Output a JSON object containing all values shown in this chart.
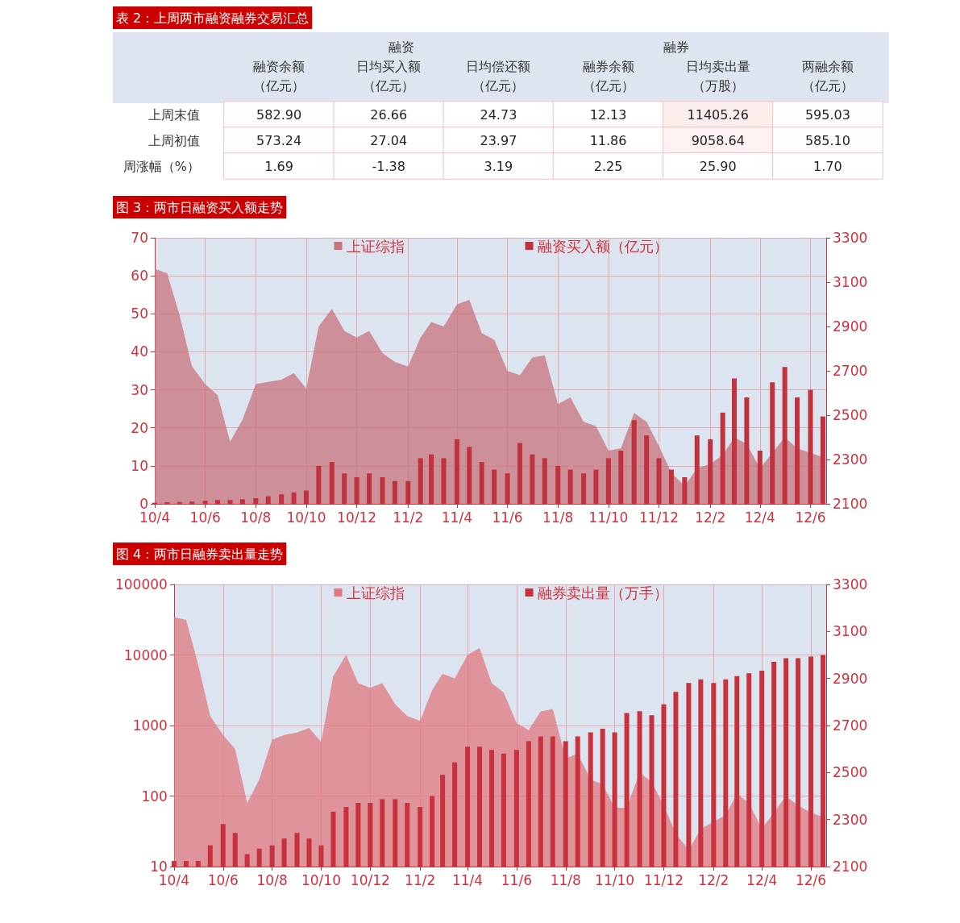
{
  "chart_data": [
    {
      "type": "heatmap",
      "title": "表 2：上周两市融资融券交易汇总",
      "annotations": [
        "融资",
        "融券"
      ],
      "categories": [
        "融资余额（亿元）",
        "日均买入额（亿元）",
        "日均偿还额（亿元）",
        "融券余额（亿元）",
        "日均卖出量（万股）",
        "两融余额（亿元）"
      ],
      "y_categories": [
        "上周末值",
        "上周初值",
        "周涨幅（%）"
      ],
      "cells": [
        [
          582.9,
          26.66,
          24.73,
          12.13,
          11405.26,
          595.03
        ],
        [
          573.24,
          27.04,
          23.97,
          11.86,
          9058.64,
          585.1
        ],
        [
          1.69,
          -1.38,
          3.19,
          2.25,
          25.9,
          1.7
        ]
      ],
      "cell_labels": [
        [
          "582.90",
          "26.66",
          "24.73",
          "12.13",
          "11405.26",
          "595.03"
        ],
        [
          "573.24",
          "27.04",
          "23.97",
          "11.86",
          "9058.64",
          "585.10"
        ],
        [
          "1.69",
          "-1.38",
          "3.19",
          "2.25",
          "25.90",
          "1.70"
        ]
      ]
    },
    {
      "type": "bar",
      "title": "图 3：两市日融资买入额走势",
      "legend": "top",
      "grid": true,
      "x": [
        "2010-04-01",
        "2010-04-16",
        "2010-05-01",
        "2010-05-16",
        "2010-06-01",
        "2010-06-16",
        "2010-07-01",
        "2010-07-16",
        "2010-08-01",
        "2010-08-16",
        "2010-09-01",
        "2010-09-16",
        "2010-10-01",
        "2010-10-16",
        "2010-11-01",
        "2010-11-16",
        "2010-12-01",
        "2010-12-16",
        "2011-01-01",
        "2011-01-16",
        "2011-02-01",
        "2011-02-16",
        "2011-03-01",
        "2011-03-16",
        "2011-04-01",
        "2011-04-16",
        "2011-05-01",
        "2011-05-16",
        "2011-06-01",
        "2011-06-16",
        "2011-07-01",
        "2011-07-16",
        "2011-08-01",
        "2011-08-16",
        "2011-09-01",
        "2011-09-16",
        "2011-10-01",
        "2011-10-16",
        "2011-11-01",
        "2011-11-16",
        "2011-12-01",
        "2011-12-16",
        "2012-01-01",
        "2012-01-16",
        "2012-02-01",
        "2012-02-16",
        "2012-03-01",
        "2012-03-16",
        "2012-04-01",
        "2012-04-16",
        "2012-05-01",
        "2012-05-16",
        "2012-06-01",
        "2012-06-16"
      ],
      "xlim": [
        "2010-04-01",
        "2012-06-20"
      ],
      "xticks": [
        {
          "value": "2010-04-01",
          "label": "10/4"
        },
        {
          "value": "2010-06-01",
          "label": "10/6"
        },
        {
          "value": "2010-08-01",
          "label": "10/8"
        },
        {
          "value": "2010-10-01",
          "label": "10/10"
        },
        {
          "value": "2010-12-01",
          "label": "10/12"
        },
        {
          "value": "2011-02-01",
          "label": "11/2"
        },
        {
          "value": "2011-04-01",
          "label": "11/4"
        },
        {
          "value": "2011-06-01",
          "label": "11/6"
        },
        {
          "value": "2011-08-01",
          "label": "11/8"
        },
        {
          "value": "2011-10-01",
          "label": "11/10"
        },
        {
          "value": "2011-12-01",
          "label": "11/12"
        },
        {
          "value": "2012-02-01",
          "label": "12/2"
        },
        {
          "value": "2012-04-01",
          "label": "12/4"
        },
        {
          "value": "2012-06-01",
          "label": "12/6"
        }
      ],
      "ylim": [
        0,
        70
      ],
      "yticks": [
        0,
        10,
        20,
        30,
        40,
        50,
        60,
        70
      ],
      "y2lim": [
        2100,
        3300
      ],
      "y2ticks": [
        2100,
        2300,
        2500,
        2700,
        2900,
        3100,
        3300
      ],
      "series": [
        {
          "name": "上证综指",
          "type": "area",
          "axis": "y2",
          "color": "#c8737b",
          "values": [
            3160,
            3140,
            2950,
            2720,
            2640,
            2590,
            2380,
            2480,
            2640,
            2650,
            2660,
            2690,
            2620,
            2900,
            2980,
            2880,
            2850,
            2880,
            2780,
            2740,
            2720,
            2850,
            2920,
            2900,
            3000,
            3020,
            2870,
            2840,
            2700,
            2680,
            2760,
            2770,
            2550,
            2580,
            2470,
            2450,
            2340,
            2350,
            2510,
            2470,
            2360,
            2240,
            2180,
            2260,
            2280,
            2320,
            2400,
            2370,
            2260,
            2330,
            2400,
            2350,
            2330,
            2310
          ]
        },
        {
          "name": "融资买入额（亿元）",
          "type": "bar",
          "color": "#c0323c",
          "values": [
            0.3,
            0.4,
            0.5,
            0.6,
            0.8,
            1,
            1,
            1.2,
            1.5,
            2,
            2.5,
            3,
            3.5,
            10,
            11,
            8,
            7,
            8,
            7,
            6,
            6,
            12,
            13,
            12,
            17,
            15,
            11,
            9,
            8,
            16,
            13,
            12,
            10,
            9,
            8,
            9,
            12,
            14,
            22,
            18,
            12,
            9,
            7,
            18,
            17,
            24,
            33,
            28,
            14,
            32,
            36,
            28,
            30,
            23
          ]
        }
      ]
    },
    {
      "type": "bar",
      "title": "图 4：两市日融券卖出量走势",
      "legend": "top",
      "grid": true,
      "log": "y",
      "x": [
        "2010-04-01",
        "2010-04-16",
        "2010-05-01",
        "2010-05-16",
        "2010-06-01",
        "2010-06-16",
        "2010-07-01",
        "2010-07-16",
        "2010-08-01",
        "2010-08-16",
        "2010-09-01",
        "2010-09-16",
        "2010-10-01",
        "2010-10-16",
        "2010-11-01",
        "2010-11-16",
        "2010-12-01",
        "2010-12-16",
        "2011-01-01",
        "2011-01-16",
        "2011-02-01",
        "2011-02-16",
        "2011-03-01",
        "2011-03-16",
        "2011-04-01",
        "2011-04-16",
        "2011-05-01",
        "2011-05-16",
        "2011-06-01",
        "2011-06-16",
        "2011-07-01",
        "2011-07-16",
        "2011-08-01",
        "2011-08-16",
        "2011-09-01",
        "2011-09-16",
        "2011-10-01",
        "2011-10-16",
        "2011-11-01",
        "2011-11-16",
        "2011-12-01",
        "2011-12-16",
        "2012-01-01",
        "2012-01-16",
        "2012-02-01",
        "2012-02-16",
        "2012-03-01",
        "2012-03-16",
        "2012-04-01",
        "2012-04-16",
        "2012-05-01",
        "2012-05-16",
        "2012-06-01",
        "2012-06-16"
      ],
      "xlim": [
        "2010-04-01",
        "2012-06-20"
      ],
      "xticks": [
        {
          "value": "2010-04-01",
          "label": "10/4"
        },
        {
          "value": "2010-06-01",
          "label": "10/6"
        },
        {
          "value": "2010-08-01",
          "label": "10/8"
        },
        {
          "value": "2010-10-01",
          "label": "10/10"
        },
        {
          "value": "2010-12-01",
          "label": "10/12"
        },
        {
          "value": "2011-02-01",
          "label": "11/2"
        },
        {
          "value": "2011-04-01",
          "label": "11/4"
        },
        {
          "value": "2011-06-01",
          "label": "11/6"
        },
        {
          "value": "2011-08-01",
          "label": "11/8"
        },
        {
          "value": "2011-10-01",
          "label": "11/10"
        },
        {
          "value": "2011-12-01",
          "label": "11/12"
        },
        {
          "value": "2012-02-01",
          "label": "12/2"
        },
        {
          "value": "2012-04-01",
          "label": "12/4"
        },
        {
          "value": "2012-06-01",
          "label": "12/6"
        }
      ],
      "ylim": [
        10,
        100000
      ],
      "yticks": [
        10,
        100,
        1000,
        10000,
        100000
      ],
      "y2lim": [
        2100,
        3300
      ],
      "y2ticks": [
        2100,
        2300,
        2500,
        2700,
        2900,
        3100,
        3300
      ],
      "series": [
        {
          "name": "上证综指",
          "type": "area",
          "axis": "y2",
          "color": "#e0787f",
          "values": [
            3160,
            3150,
            2960,
            2740,
            2660,
            2600,
            2370,
            2470,
            2640,
            2660,
            2670,
            2690,
            2630,
            2910,
            3000,
            2880,
            2860,
            2880,
            2790,
            2740,
            2720,
            2850,
            2920,
            2900,
            3000,
            3030,
            2880,
            2840,
            2710,
            2680,
            2760,
            2770,
            2560,
            2580,
            2470,
            2450,
            2350,
            2350,
            2500,
            2460,
            2360,
            2240,
            2170,
            2260,
            2290,
            2320,
            2410,
            2370,
            2260,
            2330,
            2400,
            2360,
            2330,
            2310
          ]
        },
        {
          "name": "融券卖出量（万手）",
          "type": "bar",
          "color": "#c8323c",
          "values": [
            12,
            12,
            12,
            20,
            40,
            30,
            15,
            18,
            20,
            25,
            30,
            25,
            20,
            60,
            70,
            80,
            80,
            90,
            90,
            80,
            70,
            100,
            200,
            300,
            500,
            500,
            450,
            400,
            450,
            600,
            700,
            700,
            600,
            700,
            800,
            900,
            800,
            1500,
            1600,
            1400,
            2000,
            3000,
            4000,
            4500,
            4000,
            4500,
            5000,
            5500,
            6000,
            8000,
            9000,
            9000,
            9500,
            10000
          ]
        }
      ]
    }
  ]
}
